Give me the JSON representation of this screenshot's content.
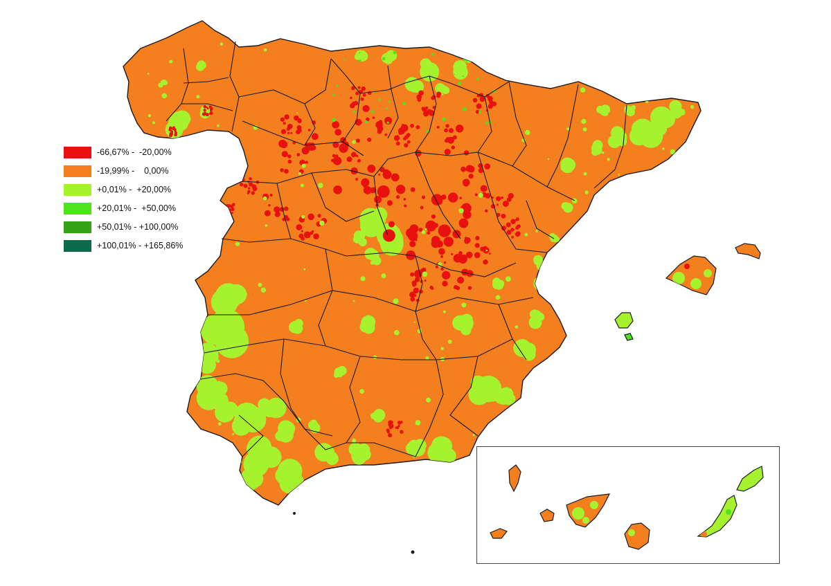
{
  "colors": {
    "decline_strong": "#e8110f",
    "decline_moderate": "#f47f1f",
    "growth_low": "#a6f22e",
    "growth_medium": "#4fe319",
    "growth_high": "#35a318",
    "growth_very_high": "#0d6b4d",
    "border": "#1a1a1a",
    "background": "#ffffff"
  },
  "legend": [
    {
      "label": "-66,67% -  -20,00%",
      "color": "#e8110f"
    },
    {
      "label": "-19,99% -    0,00%",
      "color": "#f47f1f"
    },
    {
      "label": "+0,01% -  +20,00%",
      "color": "#a6f22e"
    },
    {
      "label": "+20,01% -  +50,00%",
      "color": "#4fe319"
    },
    {
      "label": "+50,01% - +100,00%",
      "color": "#35a318"
    },
    {
      "label": "+100,01% - +165,86%",
      "color": "#0d6b4d"
    }
  ]
}
